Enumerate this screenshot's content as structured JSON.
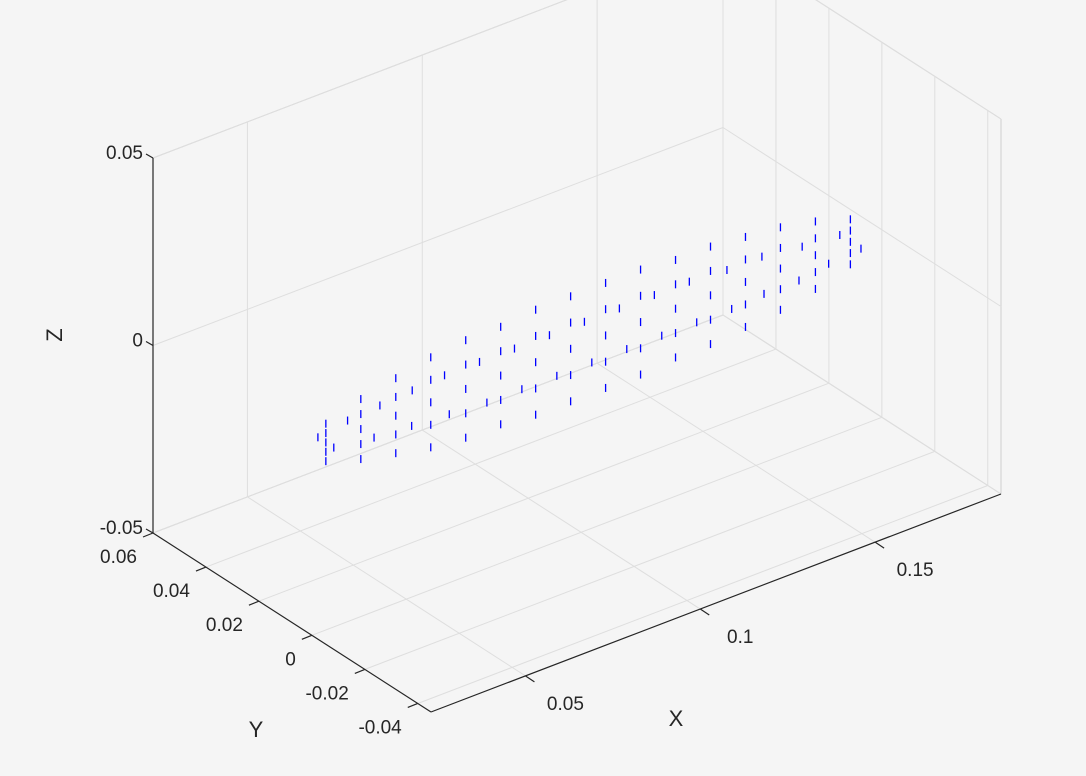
{
  "chart_data": {
    "type": "scatter3",
    "xlabel": "X",
    "ylabel": "Y",
    "zlabel": "Z",
    "color": "#0000ff",
    "xlim": [
      0.023,
      0.186
    ],
    "ylim": [
      -0.045,
      0.06
    ],
    "zlim": [
      -0.05,
      0.05
    ],
    "xticks": [
      0.05,
      0.1,
      0.15
    ],
    "yticks": [
      -0.04,
      -0.02,
      0,
      0.02,
      0.04,
      0.06
    ],
    "zticks": [
      -0.05,
      0,
      0.05
    ],
    "grid": true,
    "x": [
      0.027,
      0.027,
      0.027,
      0.027,
      0.027,
      0.027,
      0.027,
      0.037,
      0.037,
      0.037,
      0.037,
      0.037,
      0.037,
      0.037,
      0.047,
      0.047,
      0.047,
      0.047,
      0.047,
      0.047,
      0.047,
      0.057,
      0.057,
      0.057,
      0.057,
      0.057,
      0.057,
      0.057,
      0.067,
      0.067,
      0.067,
      0.067,
      0.067,
      0.067,
      0.067,
      0.077,
      0.077,
      0.077,
      0.077,
      0.077,
      0.077,
      0.077,
      0.087,
      0.087,
      0.087,
      0.087,
      0.087,
      0.087,
      0.087,
      0.097,
      0.097,
      0.097,
      0.097,
      0.097,
      0.097,
      0.097,
      0.107,
      0.107,
      0.107,
      0.107,
      0.107,
      0.107,
      0.107,
      0.117,
      0.117,
      0.117,
      0.117,
      0.117,
      0.117,
      0.117,
      0.127,
      0.127,
      0.127,
      0.127,
      0.127,
      0.127,
      0.127,
      0.137,
      0.137,
      0.137,
      0.137,
      0.137,
      0.137,
      0.137,
      0.147,
      0.147,
      0.147,
      0.147,
      0.147,
      0.147,
      0.147,
      0.157,
      0.157,
      0.157,
      0.157,
      0.157,
      0.157,
      0.157,
      0.167,
      0.167,
      0.167,
      0.167,
      0.167,
      0.167,
      0.167,
      0.177,
      0.177,
      0.177,
      0.177,
      0.177,
      0.177,
      0.177
    ],
    "y": [
      0,
      0,
      0,
      0,
      0,
      0.003,
      -0.003,
      0,
      0,
      0,
      0,
      0,
      0.005,
      -0.005,
      0,
      0,
      0,
      0,
      0,
      0.006,
      -0.006,
      0,
      0,
      0,
      0,
      0,
      0.007,
      -0.007,
      0,
      0,
      0,
      0,
      0,
      0.008,
      -0.008,
      0,
      0,
      0,
      0,
      0,
      0.008,
      -0.008,
      0,
      0,
      0,
      0,
      0,
      0.008,
      -0.008,
      0,
      0,
      0,
      0,
      0,
      0.008,
      -0.008,
      0,
      0,
      0,
      0,
      0,
      0.008,
      -0.008,
      0,
      0,
      0,
      0,
      0,
      0.008,
      -0.008,
      0,
      0,
      0,
      0,
      0,
      0.008,
      -0.008,
      0,
      0,
      0,
      0,
      0,
      0.008,
      -0.008,
      0,
      0,
      0,
      0,
      0,
      0.007,
      -0.007,
      0,
      0,
      0,
      0,
      0,
      0.007,
      -0.007,
      0,
      0,
      0,
      0,
      0,
      0.005,
      -0.005,
      0,
      0,
      0,
      0,
      0,
      0.004,
      -0.004
    ],
    "z": [
      0.005,
      0.0025,
      0,
      -0.0025,
      -0.005,
      0,
      0,
      0.008,
      0.004,
      0,
      -0.004,
      -0.008,
      0,
      0,
      0.01,
      0.005,
      0,
      -0.005,
      -0.01,
      0,
      0,
      0.012,
      0.006,
      0,
      -0.006,
      -0.012,
      0,
      0,
      0.013,
      0.0065,
      0,
      -0.0065,
      -0.013,
      0,
      0,
      0.013,
      0.0065,
      0,
      -0.0065,
      -0.013,
      0,
      0,
      0.014,
      0.007,
      0,
      -0.007,
      -0.014,
      0,
      0,
      0.014,
      0.007,
      0,
      -0.007,
      -0.014,
      0,
      0,
      0.014,
      0.007,
      0,
      -0.007,
      -0.014,
      0,
      0,
      0.014,
      0.007,
      0,
      -0.007,
      -0.014,
      0,
      0,
      0.013,
      0.0065,
      0,
      -0.0065,
      -0.013,
      0,
      0,
      0.013,
      0.0065,
      0,
      -0.0065,
      -0.013,
      0,
      0,
      0.012,
      0.006,
      0,
      -0.006,
      -0.012,
      0,
      0,
      0.011,
      0.0055,
      0,
      -0.0055,
      -0.011,
      0,
      0,
      0.009,
      0.0045,
      0,
      -0.0045,
      -0.009,
      0,
      0,
      0.006,
      0.003,
      0,
      -0.003,
      -0.006,
      0,
      0
    ]
  }
}
